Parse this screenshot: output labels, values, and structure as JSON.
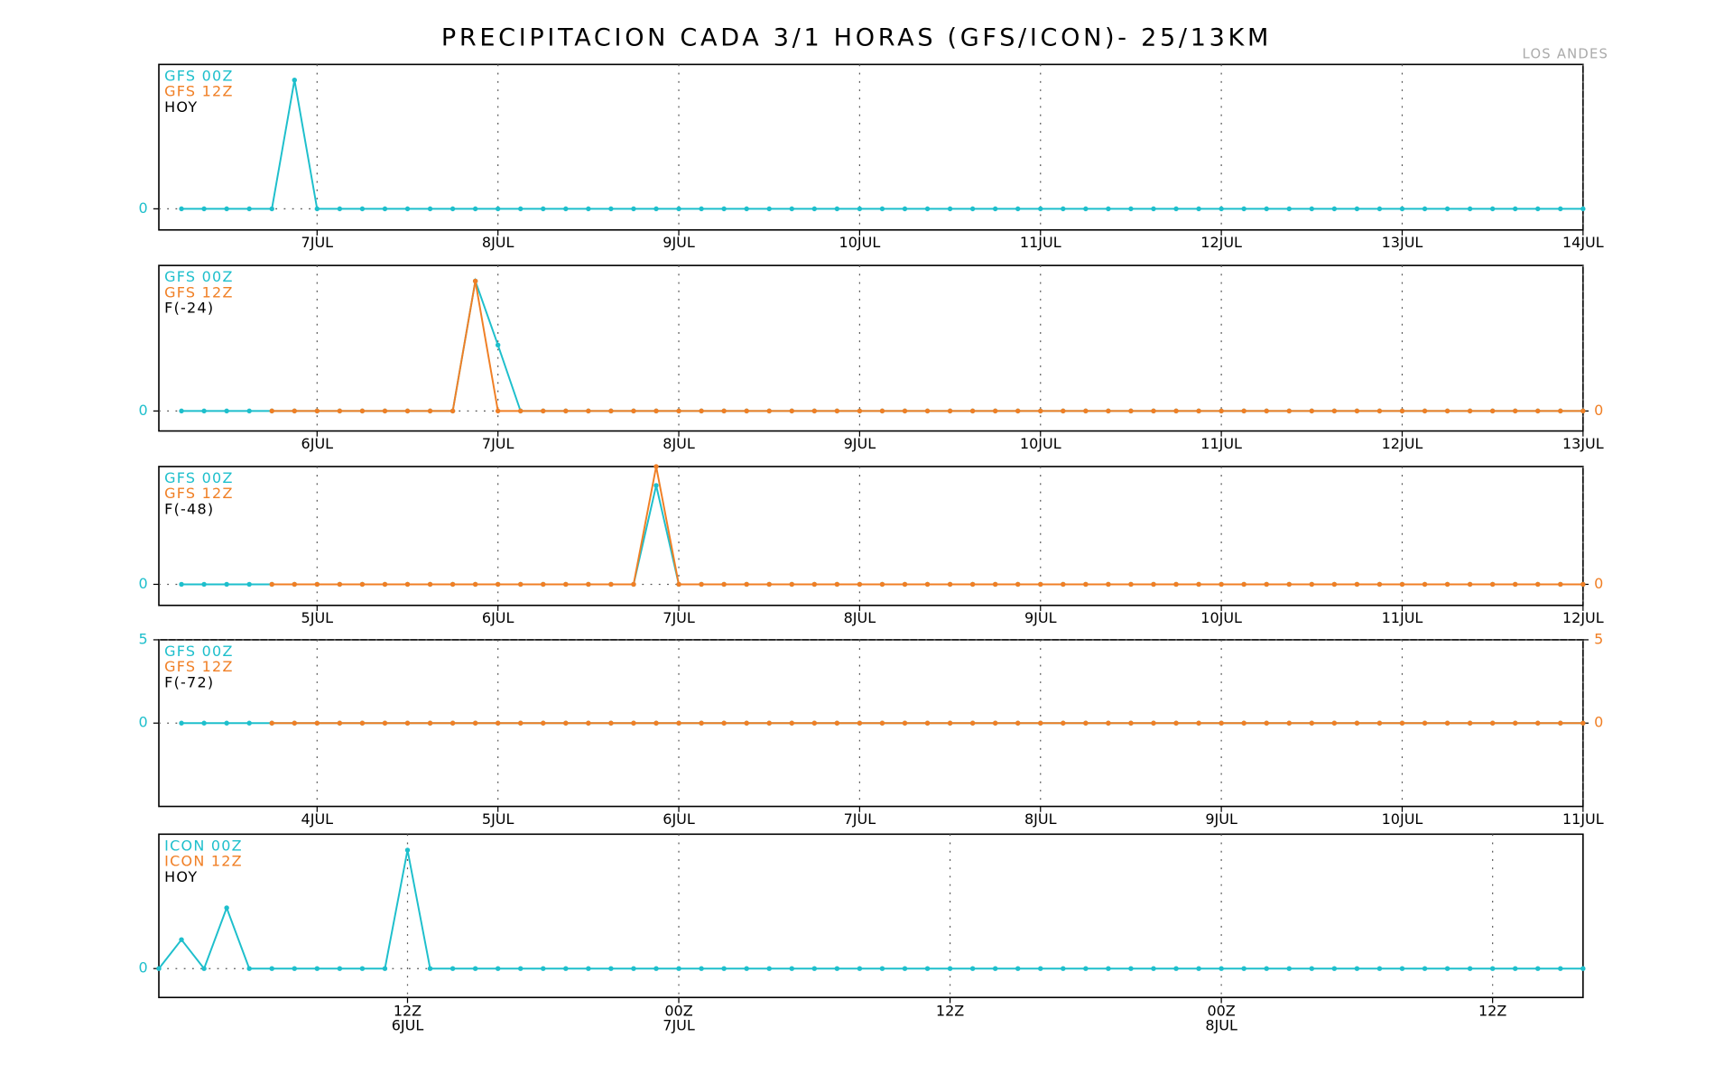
{
  "title": "PRECIPITACION CADA 3/1 HORAS (GFS/ICON)- 25/13KM",
  "subtitle": "LOS ANDES",
  "chart_data": [
    {
      "type": "line",
      "label": "HOY",
      "xlim": [
        -21,
        168
      ],
      "xticks": [
        {
          "value": 0,
          "label": "7JUL"
        },
        {
          "value": 24,
          "label": "8JUL"
        },
        {
          "value": 48,
          "label": "9JUL"
        },
        {
          "value": 72,
          "label": "10JUL"
        },
        {
          "value": 96,
          "label": "11JUL"
        },
        {
          "value": 120,
          "label": "12JUL"
        },
        {
          "value": 144,
          "label": "13JUL"
        },
        {
          "value": 168,
          "label": "14JUL"
        }
      ],
      "ylim": [
        -1,
        6.84
      ],
      "yticks": [
        0
      ],
      "grid": true,
      "x": [
        -18,
        -15,
        -12,
        -9,
        -6,
        -3,
        0,
        3,
        6,
        9,
        12,
        15,
        18,
        21,
        24,
        27,
        30,
        33,
        36,
        39,
        42,
        45,
        48,
        51,
        54,
        57,
        60,
        63,
        66,
        69,
        72,
        75,
        78,
        81,
        84,
        87,
        90,
        93,
        96,
        99,
        102,
        105,
        108,
        111,
        114,
        117,
        120,
        123,
        126,
        129,
        132,
        135,
        138,
        141,
        144,
        147,
        150,
        153,
        156,
        159,
        162,
        165,
        168
      ],
      "series": [
        {
          "name": "GFS 00Z",
          "color": "#1ebfcc",
          "values": [
            0,
            0,
            0,
            0,
            0,
            6.1,
            0,
            0,
            0,
            0,
            0,
            0,
            0,
            0,
            0,
            0,
            0,
            0,
            0,
            0,
            0,
            0,
            0,
            0,
            0,
            0,
            0,
            0,
            0,
            0,
            0,
            0,
            0,
            0,
            0,
            0,
            0,
            0,
            0,
            0,
            0,
            0,
            0,
            0,
            0,
            0,
            0,
            0,
            0,
            0,
            0,
            0,
            0,
            0,
            0,
            0,
            0,
            0,
            0,
            0,
            0,
            0,
            0
          ]
        },
        {
          "name": "GFS 12Z",
          "color": "#f07f25",
          "values": [
            null,
            null,
            null,
            null,
            null,
            null,
            null,
            null,
            null,
            null,
            null,
            null,
            null,
            null,
            null,
            null,
            null,
            null,
            null,
            null,
            null,
            null,
            null,
            null,
            null,
            null,
            null,
            null,
            null,
            null,
            null,
            null,
            null,
            null,
            null,
            null,
            null,
            null,
            null,
            null,
            null,
            null,
            null,
            null,
            null,
            null,
            null,
            null,
            null,
            null,
            null,
            null,
            null,
            null,
            null,
            null,
            null,
            null,
            null,
            null,
            null,
            null,
            null
          ]
        }
      ]
    },
    {
      "type": "line",
      "label": "F(-24)",
      "xlim": [
        -21,
        168
      ],
      "xticks": [
        {
          "value": 0,
          "label": "6JUL"
        },
        {
          "value": 24,
          "label": "7JUL"
        },
        {
          "value": 48,
          "label": "8JUL"
        },
        {
          "value": 72,
          "label": "9JUL"
        },
        {
          "value": 96,
          "label": "10JUL"
        },
        {
          "value": 120,
          "label": "11JUL"
        },
        {
          "value": 144,
          "label": "12JUL"
        },
        {
          "value": 168,
          "label": "13JUL"
        }
      ],
      "ylim": [
        -1,
        7.28
      ],
      "yticks": [
        0
      ],
      "y2ticks": [
        0
      ],
      "grid": true,
      "x": [
        -18,
        -15,
        -12,
        -9,
        -6,
        -3,
        0,
        3,
        6,
        9,
        12,
        15,
        18,
        21,
        24,
        27,
        30,
        33,
        36,
        39,
        42,
        45,
        48,
        51,
        54,
        57,
        60,
        63,
        66,
        69,
        72,
        75,
        78,
        81,
        84,
        87,
        90,
        93,
        96,
        99,
        102,
        105,
        108,
        111,
        114,
        117,
        120,
        123,
        126,
        129,
        132,
        135,
        138,
        141,
        144,
        147,
        150,
        153,
        156,
        159,
        162,
        165,
        168
      ],
      "series": [
        {
          "name": "GFS 00Z",
          "color": "#1ebfcc",
          "values": [
            0,
            0,
            0,
            0,
            0,
            0,
            0,
            0,
            0,
            0,
            0,
            0,
            0,
            6.5,
            3.3,
            0,
            0,
            0,
            0,
            0,
            0,
            0,
            0,
            0,
            0,
            0,
            0,
            0,
            0,
            0,
            0,
            0,
            0,
            0,
            0,
            0,
            0,
            0,
            0,
            0,
            0,
            0,
            0,
            0,
            0,
            0,
            0,
            0,
            0,
            0,
            0,
            0,
            0,
            0,
            0,
            0,
            0,
            0,
            0,
            0,
            0,
            0,
            0
          ]
        },
        {
          "name": "GFS 12Z",
          "color": "#f07f25",
          "axis": "y2",
          "values": [
            null,
            null,
            null,
            null,
            0,
            0,
            0,
            0,
            0,
            0,
            0,
            0,
            0,
            6.5,
            0,
            0,
            0,
            0,
            0,
            0,
            0,
            0,
            0,
            0,
            0,
            0,
            0,
            0,
            0,
            0,
            0,
            0,
            0,
            0,
            0,
            0,
            0,
            0,
            0,
            0,
            0,
            0,
            0,
            0,
            0,
            0,
            0,
            0,
            0,
            0,
            0,
            0,
            0,
            0,
            0,
            0,
            0,
            0,
            0,
            0,
            0,
            0,
            0
          ]
        }
      ]
    },
    {
      "type": "line",
      "label": "F(-48)",
      "xlim": [
        -21,
        168
      ],
      "xticks": [
        {
          "value": 0,
          "label": "5JUL"
        },
        {
          "value": 24,
          "label": "6JUL"
        },
        {
          "value": 48,
          "label": "7JUL"
        },
        {
          "value": 72,
          "label": "8JUL"
        },
        {
          "value": 96,
          "label": "9JUL"
        },
        {
          "value": 120,
          "label": "10JUL"
        },
        {
          "value": 144,
          "label": "11JUL"
        },
        {
          "value": 168,
          "label": "12JUL"
        }
      ],
      "ylim": [
        -1,
        5.6
      ],
      "yticks": [
        0
      ],
      "y2ticks": [
        0
      ],
      "grid": true,
      "x": [
        -18,
        -15,
        -12,
        -9,
        -6,
        -3,
        0,
        3,
        6,
        9,
        12,
        15,
        18,
        21,
        24,
        27,
        30,
        33,
        36,
        39,
        42,
        45,
        48,
        51,
        54,
        57,
        60,
        63,
        66,
        69,
        72,
        75,
        78,
        81,
        84,
        87,
        90,
        93,
        96,
        99,
        102,
        105,
        108,
        111,
        114,
        117,
        120,
        123,
        126,
        129,
        132,
        135,
        138,
        141,
        144,
        147,
        150,
        153,
        156,
        159,
        162,
        165,
        168
      ],
      "series": [
        {
          "name": "GFS 00Z",
          "color": "#1ebfcc",
          "values": [
            0,
            0,
            0,
            0,
            0,
            0,
            0,
            0,
            0,
            0,
            0,
            0,
            0,
            0,
            0,
            0,
            0,
            0,
            0,
            0,
            0,
            4.7,
            0,
            0,
            0,
            0,
            0,
            0,
            0,
            0,
            0,
            0,
            0,
            0,
            0,
            0,
            0,
            0,
            0,
            0,
            0,
            0,
            0,
            0,
            0,
            0,
            0,
            0,
            0,
            0,
            0,
            0,
            0,
            0,
            0,
            0,
            0,
            0,
            0,
            0,
            0,
            0,
            0
          ]
        },
        {
          "name": "GFS 12Z",
          "color": "#f07f25",
          "axis": "y2",
          "values": [
            null,
            null,
            null,
            null,
            0,
            0,
            0,
            0,
            0,
            0,
            0,
            0,
            0,
            0,
            0,
            0,
            0,
            0,
            0,
            0,
            0,
            5.6,
            0,
            0,
            0,
            0,
            0,
            0,
            0,
            0,
            0,
            0,
            0,
            0,
            0,
            0,
            0,
            0,
            0,
            0,
            0,
            0,
            0,
            0,
            0,
            0,
            0,
            0,
            0,
            0,
            0,
            0,
            0,
            0,
            0,
            0,
            0,
            0,
            0,
            0,
            0,
            0,
            0
          ]
        }
      ]
    },
    {
      "type": "line",
      "label": "F(-72)",
      "xlim": [
        -21,
        168
      ],
      "xticks": [
        {
          "value": 0,
          "label": "4JUL"
        },
        {
          "value": 24,
          "label": "5JUL"
        },
        {
          "value": 48,
          "label": "6JUL"
        },
        {
          "value": 72,
          "label": "7JUL"
        },
        {
          "value": 96,
          "label": "8JUL"
        },
        {
          "value": 120,
          "label": "9JUL"
        },
        {
          "value": 144,
          "label": "10JUL"
        },
        {
          "value": 168,
          "label": "11JUL"
        }
      ],
      "ylim": [
        -5,
        5
      ],
      "yticks": [
        0,
        5
      ],
      "y2ticks": [
        0,
        5
      ],
      "grid": true,
      "x": [
        -18,
        -15,
        -12,
        -9,
        -6,
        -3,
        0,
        3,
        6,
        9,
        12,
        15,
        18,
        21,
        24,
        27,
        30,
        33,
        36,
        39,
        42,
        45,
        48,
        51,
        54,
        57,
        60,
        63,
        66,
        69,
        72,
        75,
        78,
        81,
        84,
        87,
        90,
        93,
        96,
        99,
        102,
        105,
        108,
        111,
        114,
        117,
        120,
        123,
        126,
        129,
        132,
        135,
        138,
        141,
        144,
        147,
        150,
        153,
        156,
        159,
        162,
        165,
        168
      ],
      "series": [
        {
          "name": "GFS 00Z",
          "color": "#1ebfcc",
          "values": [
            0,
            0,
            0,
            0,
            0,
            0,
            0,
            0,
            0,
            0,
            0,
            0,
            0,
            0,
            0,
            0,
            0,
            0,
            0,
            0,
            0,
            0,
            0,
            0,
            0,
            0,
            0,
            0,
            0,
            0,
            0,
            0,
            0,
            0,
            0,
            0,
            0,
            0,
            0,
            0,
            0,
            0,
            0,
            0,
            0,
            0,
            0,
            0,
            0,
            0,
            0,
            0,
            0,
            0,
            0,
            0,
            0,
            0,
            0,
            0,
            0,
            0,
            0
          ]
        },
        {
          "name": "GFS 12Z",
          "color": "#f07f25",
          "axis": "y2",
          "values": [
            null,
            null,
            null,
            null,
            0,
            0,
            0,
            0,
            0,
            0,
            0,
            0,
            0,
            0,
            0,
            0,
            0,
            0,
            0,
            0,
            0,
            0,
            0,
            0,
            0,
            0,
            0,
            0,
            0,
            0,
            0,
            0,
            0,
            0,
            0,
            0,
            0,
            0,
            0,
            0,
            0,
            0,
            0,
            0,
            0,
            0,
            0,
            0,
            0,
            0,
            0,
            0,
            0,
            0,
            0,
            0,
            0,
            0,
            0,
            0,
            0,
            0,
            0
          ]
        }
      ]
    },
    {
      "type": "line",
      "label": "HOY",
      "xlim": [
        -11,
        52
      ],
      "xticks": [
        {
          "value": 0,
          "label": [
            "12Z",
            "6JUL"
          ]
        },
        {
          "value": 12,
          "label": [
            "00Z",
            "7JUL"
          ]
        },
        {
          "value": 24,
          "label": [
            "12Z"
          ]
        },
        {
          "value": 36,
          "label": [
            "00Z",
            "8JUL"
          ]
        },
        {
          "value": 48,
          "label": [
            "12Z"
          ]
        }
      ],
      "ylim": [
        -1,
        4.65
      ],
      "yticks": [
        0
      ],
      "grid": true,
      "x": [
        -11,
        -10,
        -9,
        -8,
        -7,
        -6,
        -5,
        -4,
        -3,
        -2,
        -1,
        0,
        1,
        2,
        3,
        4,
        5,
        6,
        7,
        8,
        9,
        10,
        11,
        12,
        13,
        14,
        15,
        16,
        17,
        18,
        19,
        20,
        21,
        22,
        23,
        24,
        25,
        26,
        27,
        28,
        29,
        30,
        31,
        32,
        33,
        34,
        35,
        36,
        37,
        38,
        39,
        40,
        41,
        42,
        43,
        44,
        45,
        46,
        47,
        48,
        49,
        50,
        51,
        52
      ],
      "series": [
        {
          "name": "ICON 00Z",
          "color": "#1ebfcc",
          "values": [
            0,
            1.0,
            0,
            2.1,
            0,
            0,
            0,
            0,
            0,
            0,
            0,
            4.1,
            0,
            0,
            0,
            0,
            0,
            0,
            0,
            0,
            0,
            0,
            0,
            0,
            0,
            0,
            0,
            0,
            0,
            0,
            0,
            0,
            0,
            0,
            0,
            0,
            0,
            0,
            0,
            0,
            0,
            0,
            0,
            0,
            0,
            0,
            0,
            0,
            0,
            0,
            0,
            0,
            0,
            0,
            0,
            0,
            0,
            0,
            0,
            0,
            0,
            0,
            0,
            0
          ]
        },
        {
          "name": "ICON 12Z",
          "color": "#f07f25",
          "values": [
            null,
            null,
            null,
            null,
            null,
            null,
            null,
            null,
            null,
            null,
            null,
            null,
            null,
            null,
            null,
            null,
            null,
            null,
            null,
            null,
            null,
            null,
            null,
            null,
            null,
            null,
            null,
            null,
            null,
            null,
            null,
            null,
            null,
            null,
            null,
            null,
            null,
            null,
            null,
            null,
            null,
            null,
            null,
            null,
            null,
            null,
            null,
            null,
            null,
            null,
            null,
            null,
            null,
            null,
            null,
            null,
            null,
            null,
            null,
            null,
            null,
            null,
            null,
            null
          ]
        }
      ]
    }
  ]
}
